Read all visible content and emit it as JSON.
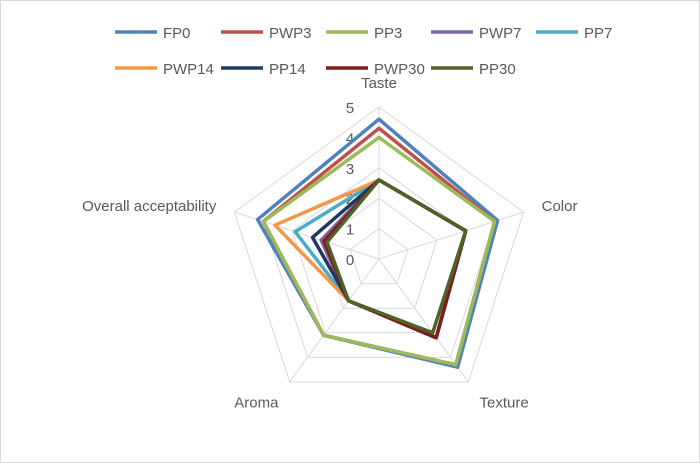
{
  "chart_data": {
    "type": "radar",
    "title": "",
    "categories": [
      "Taste",
      "Color",
      "Texture",
      "Aroma",
      "Overall acceptability"
    ],
    "rlim": [
      0,
      5
    ],
    "ticks": [
      "0",
      "1",
      "2",
      "3",
      "4",
      "5"
    ],
    "grid": true,
    "legend": "top",
    "series": [
      {
        "name": "FP0",
        "color": "#4f81bd",
        "values": [
          4.6,
          4.1,
          4.4,
          3.1,
          4.2
        ]
      },
      {
        "name": "PWP3",
        "color": "#c0504d",
        "values": [
          4.3,
          4.0,
          4.3,
          3.1,
          4.0
        ]
      },
      {
        "name": "PP3",
        "color": "#9bbb59",
        "values": [
          4.0,
          4.0,
          4.3,
          3.1,
          4.0
        ]
      },
      {
        "name": "PWP7",
        "color": "#8064a2",
        "values": [
          2.6,
          3.0,
          3.2,
          1.7,
          2.0
        ]
      },
      {
        "name": "PP7",
        "color": "#4bacc6",
        "values": [
          2.6,
          3.0,
          3.2,
          1.7,
          2.9
        ]
      },
      {
        "name": "PWP14",
        "color": "#f79646",
        "values": [
          2.6,
          3.0,
          3.2,
          1.7,
          3.6
        ]
      },
      {
        "name": "PP14",
        "color": "#1f3864",
        "values": [
          2.6,
          3.0,
          3.2,
          1.7,
          2.3
        ]
      },
      {
        "name": "PWP30",
        "color": "#7f1c1c",
        "values": [
          2.6,
          3.0,
          3.2,
          1.7,
          1.9
        ]
      },
      {
        "name": "PP30",
        "color": "#4f6228",
        "values": [
          2.6,
          3.0,
          3.0,
          1.7,
          1.8
        ]
      }
    ]
  }
}
